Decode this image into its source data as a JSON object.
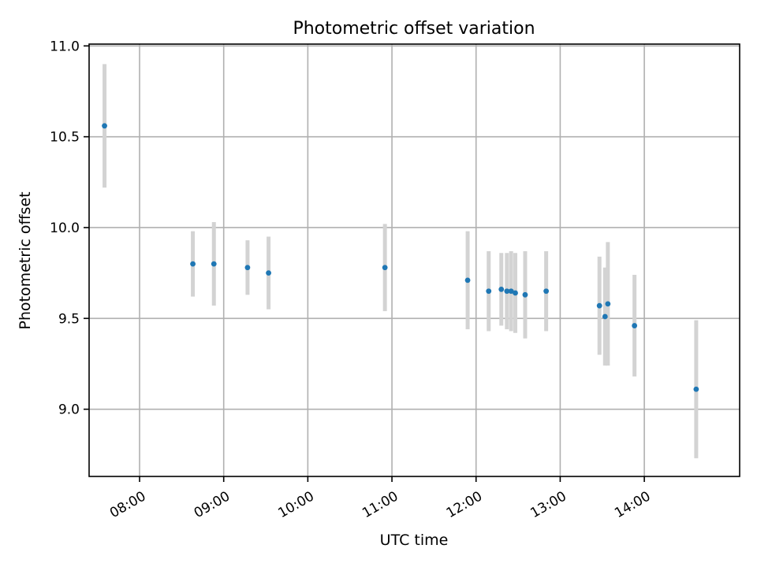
{
  "chart_data": {
    "type": "scatter",
    "title": "Photometric offset variation",
    "xlabel": "UTC time",
    "ylabel": "Photometric offset",
    "xlim": [
      "07:24",
      "15:08"
    ],
    "ylim": [
      8.63,
      11.01
    ],
    "x_ticks": [
      "08:00",
      "09:00",
      "10:00",
      "11:00",
      "12:00",
      "13:00",
      "14:00"
    ],
    "y_ticks": [
      "9.0",
      "9.5",
      "10.0",
      "10.5",
      "11.0"
    ],
    "y_tick_values": [
      9.0,
      9.5,
      10.0,
      10.5,
      11.0
    ],
    "grid": true,
    "colors": {
      "points": "#1f77b4",
      "error_bars": "#d3d3d3",
      "grid": "#b0b0b0"
    },
    "series": [
      {
        "points": [
          {
            "time": "07:35",
            "y": 10.56,
            "yerr": 0.34
          },
          {
            "time": "08:38",
            "y": 9.8,
            "yerr": 0.18
          },
          {
            "time": "08:53",
            "y": 9.8,
            "yerr": 0.23
          },
          {
            "time": "09:17",
            "y": 9.78,
            "yerr": 0.15
          },
          {
            "time": "09:32",
            "y": 9.75,
            "yerr": 0.2
          },
          {
            "time": "10:55",
            "y": 9.78,
            "yerr": 0.24
          },
          {
            "time": "11:54",
            "y": 9.71,
            "yerr": 0.27
          },
          {
            "time": "12:09",
            "y": 9.65,
            "yerr": 0.22
          },
          {
            "time": "12:18",
            "y": 9.66,
            "yerr": 0.2
          },
          {
            "time": "12:22",
            "y": 9.65,
            "yerr": 0.21
          },
          {
            "time": "12:25",
            "y": 9.65,
            "yerr": 0.22
          },
          {
            "time": "12:28",
            "y": 9.64,
            "yerr": 0.22
          },
          {
            "time": "12:35",
            "y": 9.63,
            "yerr": 0.24
          },
          {
            "time": "12:50",
            "y": 9.65,
            "yerr": 0.22
          },
          {
            "time": "13:28",
            "y": 9.57,
            "yerr": 0.27
          },
          {
            "time": "13:32",
            "y": 9.51,
            "yerr": 0.27
          },
          {
            "time": "13:34",
            "y": 9.58,
            "yerr": 0.34
          },
          {
            "time": "13:53",
            "y": 9.46,
            "yerr": 0.28
          },
          {
            "time": "14:37",
            "y": 9.11,
            "yerr": 0.38
          }
        ]
      }
    ]
  }
}
